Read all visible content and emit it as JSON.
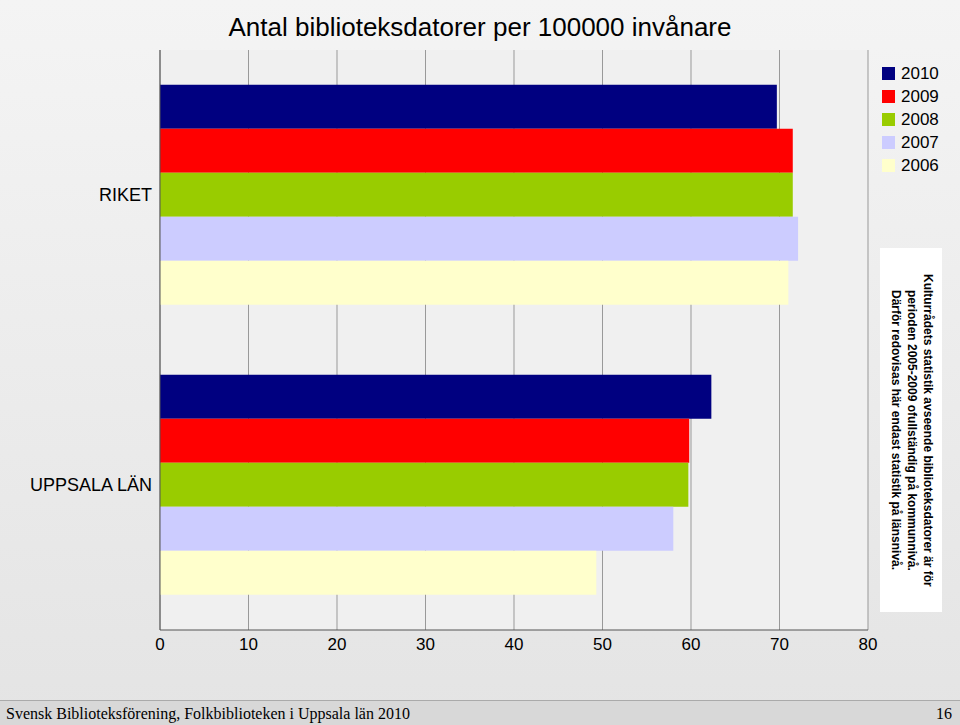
{
  "chart_data": {
    "type": "bar",
    "title": "Antal biblioteksdatorer per 100000 invånare",
    "orientation": "horizontal",
    "categories": [
      "RIKET",
      "UPPSALA LÄN"
    ],
    "series": [
      {
        "name": "2010",
        "color": "#000080",
        "values": [
          69.7,
          62.3
        ]
      },
      {
        "name": "2009",
        "color": "#ff0000",
        "values": [
          71.5,
          59.8
        ]
      },
      {
        "name": "2008",
        "color": "#99cc00",
        "values": [
          71.5,
          59.7
        ]
      },
      {
        "name": "2007",
        "color": "#ccccff",
        "values": [
          72.1,
          58.0
        ]
      },
      {
        "name": "2006",
        "color": "#ffffcc",
        "values": [
          71.0,
          49.3
        ]
      }
    ],
    "xlim": [
      0,
      80
    ],
    "xticks": [
      0,
      10,
      20,
      30,
      40,
      50,
      60,
      70,
      80
    ],
    "grid": true,
    "legend": "upper right",
    "annotation": [
      "Kulturrådets statistik avseende biblioteksdatorer är för",
      "perioden 2005-2009 ofullständig på kommunnivå.",
      "Därför redovisas här endast statistik på länsnivå."
    ],
    "footer": {
      "source": "Svensk Biblioteksförening, Folkbiblioteken i Uppsala län 2010",
      "page": 16
    }
  }
}
